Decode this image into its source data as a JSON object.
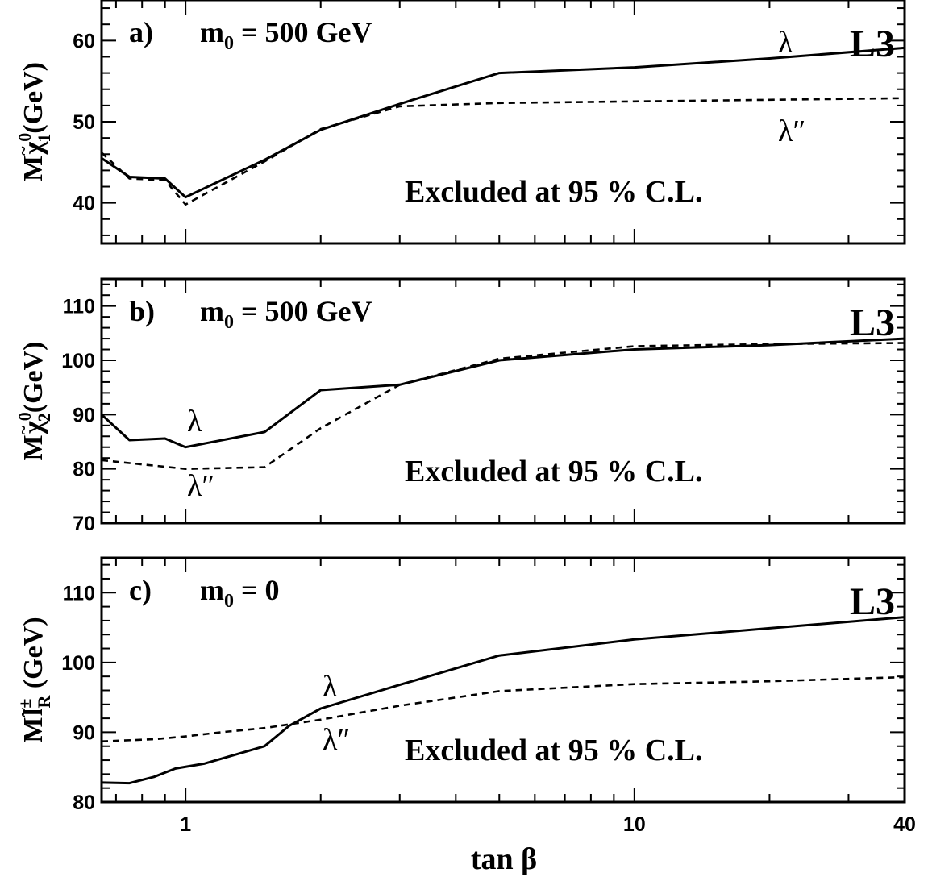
{
  "chart_data": [
    {
      "type": "line",
      "panel_label": "a)",
      "condition": "m",
      "condition_sub": "0",
      "condition_value": " = 500 GeV",
      "experiment": "L3",
      "ylabel": {
        "main": "M",
        "particle": "χ",
        "tilde": "~",
        "sup": "0",
        "sub": "1",
        "unit": "(GeV)"
      },
      "ylim": [
        35,
        65
      ],
      "yticks": [
        40,
        50,
        60
      ],
      "xscale": "log",
      "xlim": [
        0.65,
        40
      ],
      "annotation": "Excluded at 95 % C.L.",
      "curve_labels": [
        "λ",
        "λ″"
      ],
      "series": [
        {
          "name": "λ",
          "style": "solid",
          "x": [
            0.65,
            0.75,
            0.9,
            1.0,
            1.5,
            2.0,
            3.0,
            5.0,
            10,
            20,
            40
          ],
          "y": [
            45.5,
            43.2,
            43.0,
            40.7,
            45.3,
            49.0,
            52.2,
            56.0,
            56.7,
            57.8,
            59.1
          ]
        },
        {
          "name": "λ″",
          "style": "dashed",
          "x": [
            0.65,
            0.75,
            0.9,
            1.0,
            1.5,
            2.0,
            3.0,
            5.0,
            10,
            20,
            40
          ],
          "y": [
            46.2,
            43.0,
            42.8,
            39.8,
            45.1,
            49.1,
            51.9,
            52.3,
            52.5,
            52.7,
            52.9
          ]
        }
      ]
    },
    {
      "type": "line",
      "panel_label": "b)",
      "condition": "m",
      "condition_sub": "0",
      "condition_value": " = 500 GeV",
      "experiment": "L3",
      "ylabel": {
        "main": "M",
        "particle": "χ",
        "tilde": "~",
        "sup": "0",
        "sub": "2",
        "unit": "(GeV)"
      },
      "ylim": [
        70,
        115
      ],
      "yticks": [
        70,
        80,
        90,
        100,
        110
      ],
      "xscale": "log",
      "xlim": [
        0.65,
        40
      ],
      "annotation": "Excluded at 95 % C.L.",
      "curve_labels": [
        "λ",
        "λ″"
      ],
      "series": [
        {
          "name": "λ",
          "style": "solid",
          "x": [
            0.65,
            0.75,
            0.9,
            1.0,
            1.5,
            2.0,
            3.0,
            5.0,
            10,
            20,
            40
          ],
          "y": [
            90.0,
            85.3,
            85.6,
            84.0,
            86.8,
            94.5,
            95.5,
            100.0,
            102.0,
            102.8,
            104.0
          ]
        },
        {
          "name": "λ″",
          "style": "dashed",
          "x": [
            0.65,
            1.0,
            1.5,
            2.0,
            3.0,
            5.0,
            10,
            20,
            40
          ],
          "y": [
            81.6,
            80.0,
            80.3,
            87.5,
            95.5,
            100.3,
            102.6,
            103.0,
            103.2
          ]
        }
      ]
    },
    {
      "type": "line",
      "panel_label": "c)",
      "condition": "m",
      "condition_sub": "0",
      "condition_value": " = 0",
      "experiment": "L3",
      "ylabel": {
        "main": "M",
        "particle": "l",
        "tilde": "~",
        "sup": "±",
        "sub": "R",
        "unit": " (GeV)"
      },
      "ylim": [
        80,
        115
      ],
      "yticks": [
        80,
        90,
        100,
        110
      ],
      "xscale": "log",
      "xlim": [
        0.65,
        40
      ],
      "xticks": [
        1,
        10,
        40
      ],
      "xlabel": "tan β",
      "annotation": "Excluded at 95 % C.L.",
      "curve_labels": [
        "λ",
        "λ″"
      ],
      "series": [
        {
          "name": "λ",
          "style": "solid",
          "x": [
            0.65,
            0.75,
            0.85,
            0.95,
            1.1,
            1.5,
            1.7,
            2.0,
            3.0,
            5.0,
            10,
            20,
            40
          ],
          "y": [
            82.8,
            82.7,
            83.6,
            84.8,
            85.5,
            88.0,
            90.9,
            93.4,
            96.8,
            101.0,
            103.3,
            104.9,
            106.5
          ]
        },
        {
          "name": "λ″",
          "style": "dashed",
          "x": [
            0.65,
            0.85,
            1.0,
            1.2,
            1.5,
            2.0,
            3.0,
            5.0,
            10,
            20,
            40
          ],
          "y": [
            88.7,
            89.0,
            89.4,
            90.0,
            90.6,
            91.8,
            93.8,
            95.9,
            96.9,
            97.3,
            97.9
          ]
        }
      ]
    }
  ]
}
